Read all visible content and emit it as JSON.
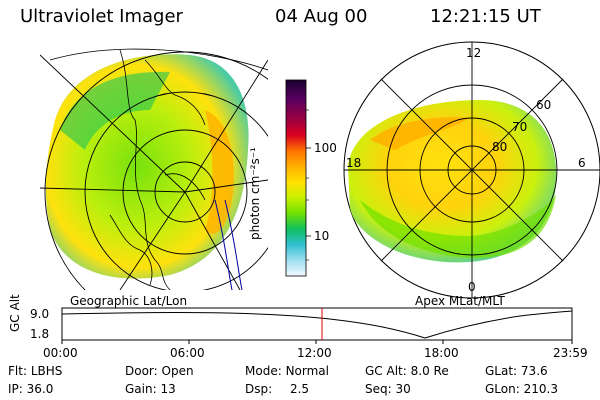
{
  "header": {
    "instrument": "Ultraviolet Imager",
    "date": "04 Aug 00",
    "time": "12:21:15 UT"
  },
  "colorbar": {
    "unit_label": "photon cm⁻²s⁻¹",
    "tick_labels": [
      "100",
      "10"
    ],
    "colors": [
      "#1a0030",
      "#5a0060",
      "#9a0040",
      "#d80020",
      "#ff7000",
      "#ffb000",
      "#ffe000",
      "#c8f000",
      "#70e000",
      "#10c060",
      "#30c0d0",
      "#a0e0f0",
      "#f0f8ff"
    ]
  },
  "left_map": {
    "caption": "Geographic Lat/Lon"
  },
  "right_map": {
    "caption": "Apex MLat/MLT",
    "mlt_labels": {
      "top": "12",
      "left": "18",
      "right": "6",
      "bottom": "0"
    },
    "lat_labels": [
      "60",
      "70",
      "80"
    ]
  },
  "altitude_plot": {
    "axis_label": "GC Alt",
    "y_ticks": [
      "9.0",
      "1.8"
    ],
    "x_ticks": [
      "00:00",
      "06:00",
      "12:00",
      "18:00",
      "23:59"
    ],
    "current_time_marker_color": "#e00000"
  },
  "footer": {
    "row1": [
      {
        "label": "Flt:",
        "value": "LBHS"
      },
      {
        "label": "Door:",
        "value": "Open"
      },
      {
        "label": "Mode:",
        "value": "Normal"
      },
      {
        "label": "GC Alt:",
        "value": "8.0 Re"
      },
      {
        "label": "GLat:",
        "value": "73.6"
      }
    ],
    "row2": [
      {
        "label": "IP:",
        "value": "36.0"
      },
      {
        "label": "Gain:",
        "value": "13"
      },
      {
        "label": "Dsp:",
        "value": "2.5"
      },
      {
        "label": "Seq:",
        "value": "30"
      },
      {
        "label": "GLon:",
        "value": "210.3"
      }
    ]
  }
}
